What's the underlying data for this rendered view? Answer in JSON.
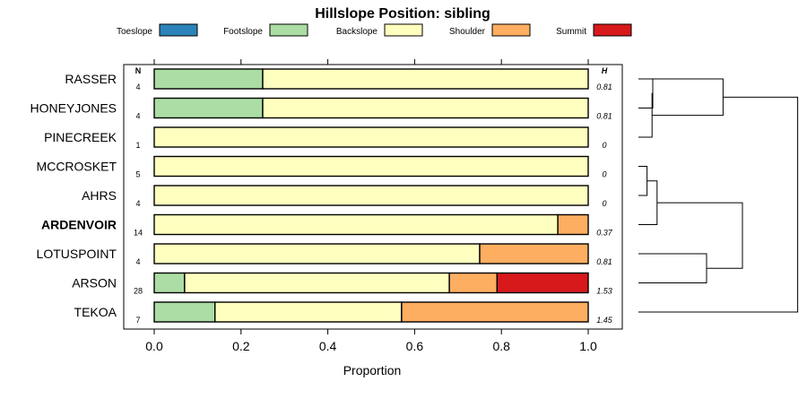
{
  "chart_data": {
    "type": "bar",
    "stacked": true,
    "orientation": "horizontal",
    "title": "Hillslope Position: sibling",
    "xlabel": "Proportion",
    "xlim": [
      0,
      1
    ],
    "xticks": [
      "0.0",
      "0.2",
      "0.4",
      "0.6",
      "0.8",
      "1.0"
    ],
    "n_header": "N",
    "h_header": "H",
    "legend_position": "top",
    "series": [
      {
        "name": "Toeslope",
        "color": "#2b83ba"
      },
      {
        "name": "Footslope",
        "color": "#abdda4"
      },
      {
        "name": "Backslope",
        "color": "#ffffbf"
      },
      {
        "name": "Shoulder",
        "color": "#fdae61"
      },
      {
        "name": "Summit",
        "color": "#d7191c"
      }
    ],
    "rows": [
      {
        "label": "RASSER",
        "bold": false,
        "n": "4",
        "h": "0.81",
        "values": [
          0,
          0.25,
          0.75,
          0,
          0
        ]
      },
      {
        "label": "HONEYJONES",
        "bold": false,
        "n": "4",
        "h": "0.81",
        "values": [
          0,
          0.25,
          0.75,
          0,
          0
        ]
      },
      {
        "label": "PINECREEK",
        "bold": false,
        "n": "1",
        "h": "0",
        "values": [
          0,
          0,
          1,
          0,
          0
        ]
      },
      {
        "label": "MCCROSKET",
        "bold": false,
        "n": "5",
        "h": "0",
        "values": [
          0,
          0,
          1,
          0,
          0
        ]
      },
      {
        "label": "AHRS",
        "bold": false,
        "n": "4",
        "h": "0",
        "values": [
          0,
          0,
          1,
          0,
          0
        ]
      },
      {
        "label": "ARDENVOIR",
        "bold": true,
        "n": "14",
        "h": "0.37",
        "values": [
          0,
          0,
          0.93,
          0.07,
          0
        ]
      },
      {
        "label": "LOTUSPOINT",
        "bold": false,
        "n": "4",
        "h": "0.81",
        "values": [
          0,
          0,
          0.75,
          0.25,
          0
        ]
      },
      {
        "label": "ARSON",
        "bold": false,
        "n": "28",
        "h": "1.53",
        "values": [
          0,
          0.07,
          0.61,
          0.11,
          0.21
        ]
      },
      {
        "label": "TEKOA",
        "bold": false,
        "n": "7",
        "h": "1.45",
        "values": [
          0,
          0.14,
          0.43,
          0.43,
          0
        ]
      }
    ],
    "dendrogram": [
      {
        "a": 0,
        "b": 1,
        "h": 0.2
      },
      {
        "a": 3,
        "b": 4,
        "h": 0.12
      },
      {
        "a": 2,
        "b": 9,
        "h": 0.19
      },
      {
        "a": 5,
        "b": 10,
        "h": 0.26
      },
      {
        "a": 6,
        "b": 7,
        "h": 0.95
      },
      {
        "a": 0,
        "b": 11,
        "h": 1.18
      },
      {
        "a": 12,
        "b": 13,
        "h": 1.45
      },
      {
        "a": 14,
        "b": 8,
        "h": 2.22
      }
    ]
  }
}
